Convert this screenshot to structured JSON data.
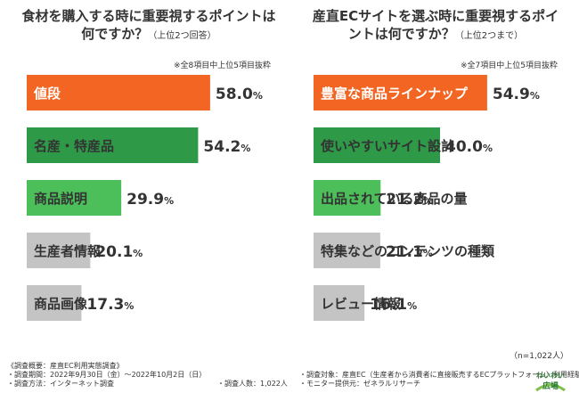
{
  "chart_data": [
    {
      "type": "bar",
      "orientation": "horizontal",
      "title": "食材を購入する時に重要視するポイントは何ですか？",
      "subtitle": "（上位2つ回答）",
      "note": "※全8項目中上位5項目抜粋",
      "unit": "%",
      "xlim": [
        0,
        60
      ],
      "categories": [
        "値段",
        "名産・特産品",
        "商品説明",
        "生産者情報",
        "商品画像"
      ],
      "values": [
        58.0,
        54.2,
        29.9,
        20.1,
        17.3
      ],
      "value_labels": [
        {
          "num": "58.0",
          "pct": "%"
        },
        {
          "num": "54.2",
          "pct": "%"
        },
        {
          "num": "29.9",
          "pct": "%"
        },
        {
          "num": "20.1",
          "pct": "%"
        },
        {
          "num": "17.3",
          "pct": "%"
        }
      ],
      "colors": [
        "#f26522",
        "#2e9a48",
        "#4cbf5a",
        "#c4c4c4",
        "#c4c4c4"
      ],
      "text_colors": [
        "#ffffff",
        "#333333",
        "#333333",
        "#333333",
        "#333333"
      ]
    },
    {
      "type": "bar",
      "orientation": "horizontal",
      "title": "産直ECサイトを選ぶ時に重要視するポイントは何ですか？",
      "subtitle": "（上位2つまで）",
      "note": "※全7項目中上位5項目抜粋",
      "unit": "%",
      "xlim": [
        0,
        60
      ],
      "categories": [
        "豊富な商品ラインナップ",
        "使いやすいサイト設計",
        "出品されている商品の量",
        "特集などのコンテンツの種類",
        "レビュー情報"
      ],
      "values": [
        54.9,
        40.0,
        21.2,
        21.1,
        16.1
      ],
      "value_labels": [
        {
          "num": "54.9",
          "pct": "%"
        },
        {
          "num": "40.0",
          "pct": "%"
        },
        {
          "num": "21.2",
          "pct": "%"
        },
        {
          "num": "21.1",
          "pct": "%"
        },
        {
          "num": "16.1",
          "pct": "%"
        }
      ],
      "colors": [
        "#f26522",
        "#2e9a48",
        "#4cbf5a",
        "#c4c4c4",
        "#c4c4c4"
      ],
      "text_colors": [
        "#ffffff",
        "#333333",
        "#333333",
        "#333333",
        "#333333"
      ]
    }
  ],
  "sample_note": "（n=1,022人）",
  "footer": {
    "heading": "《調査概要：産直EC利用実態調査》",
    "col1": [
      "・調査期間：2022年9月30日（金）〜2022年10月2日（日）",
      "・調査方法：インターネット調査"
    ],
    "col2": [
      "・調査人数：1,022人"
    ],
    "col3": [
      "・調査対象：産直EC（生産者から消費者に直接販売するECプラットフォーム）利用経験者",
      "・モニター提供元：ゼネラルリサーチ"
    ]
  },
  "logo": {
    "line1": "わいわい",
    "line2": "広場"
  }
}
